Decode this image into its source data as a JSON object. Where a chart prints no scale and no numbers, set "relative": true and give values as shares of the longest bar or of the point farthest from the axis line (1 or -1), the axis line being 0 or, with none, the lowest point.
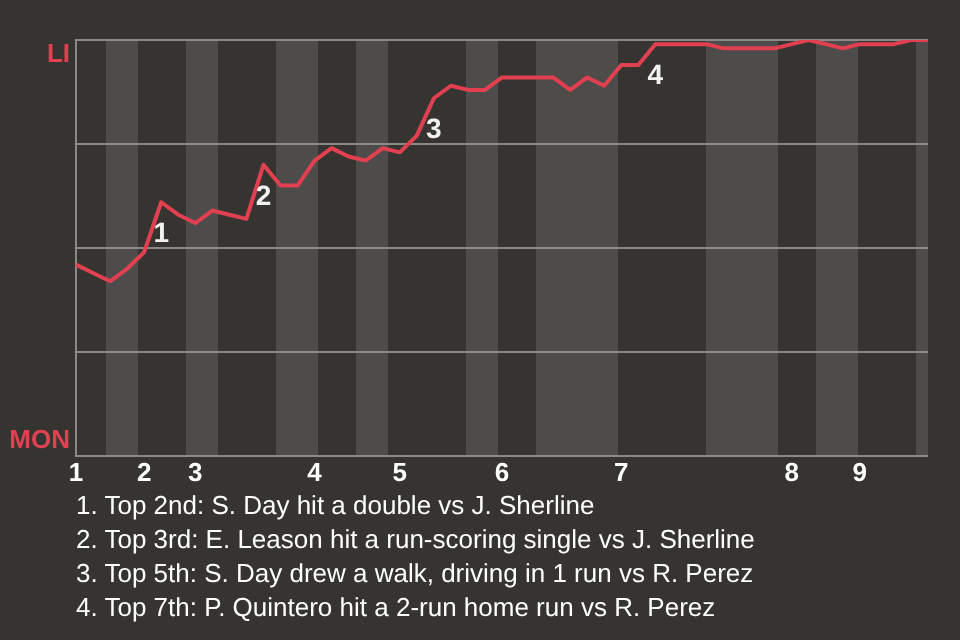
{
  "chart_data": {
    "type": "line",
    "relative": true,
    "categories": [
      "1",
      null,
      null,
      null,
      "2",
      null,
      null,
      "3",
      null,
      null,
      null,
      null,
      null,
      null,
      "4",
      null,
      null,
      null,
      null,
      "5",
      null,
      null,
      null,
      null,
      null,
      "6",
      null,
      null,
      null,
      null,
      null,
      null,
      "7",
      null,
      null,
      null,
      null,
      null,
      null,
      null,
      null,
      null,
      "8",
      null,
      null,
      null,
      "9",
      null,
      null,
      null,
      null
    ],
    "series": [
      {
        "color": "#e0404f",
        "values": [
          0.46,
          0.44,
          0.42,
          0.45,
          0.49,
          0.61,
          0.58,
          0.56,
          0.59,
          0.58,
          0.57,
          0.7,
          0.65,
          0.65,
          0.71,
          0.74,
          0.72,
          0.71,
          0.74,
          0.73,
          0.77,
          0.86,
          0.89,
          0.88,
          0.88,
          0.91,
          0.91,
          0.91,
          0.91,
          0.88,
          0.91,
          0.89,
          0.94,
          0.94,
          0.99,
          0.99,
          0.99,
          0.99,
          0.98,
          0.98,
          0.98,
          0.98,
          0.99,
          1,
          0.99,
          0.98,
          0.99,
          0.99,
          0.99,
          1,
          1
        ]
      }
    ],
    "grid": "y",
    "marker": "none",
    "line_style": "solid",
    "legend": false,
    "tick_labels": "x",
    "annotations": [
      "LI",
      "MON",
      {
        "text": "1",
        "y": 0.61
      },
      {
        "text": "2",
        "y": 0.7
      },
      {
        "text": "3",
        "y": 0.86
      },
      {
        "text": "4",
        "y": 0.99
      },
      "1. Top 2nd: S. Day hit a double vs J. Sherline",
      "2. Top 3rd: E. Leason hit a run-scoring single vs J. Sherline",
      "3. Top 5th: S. Day drew a walk, driving in 1 run vs R. Perez",
      "4. Top 7th: P. Quintero hit a 2-run home run vs R. Perez"
    ]
  }
}
